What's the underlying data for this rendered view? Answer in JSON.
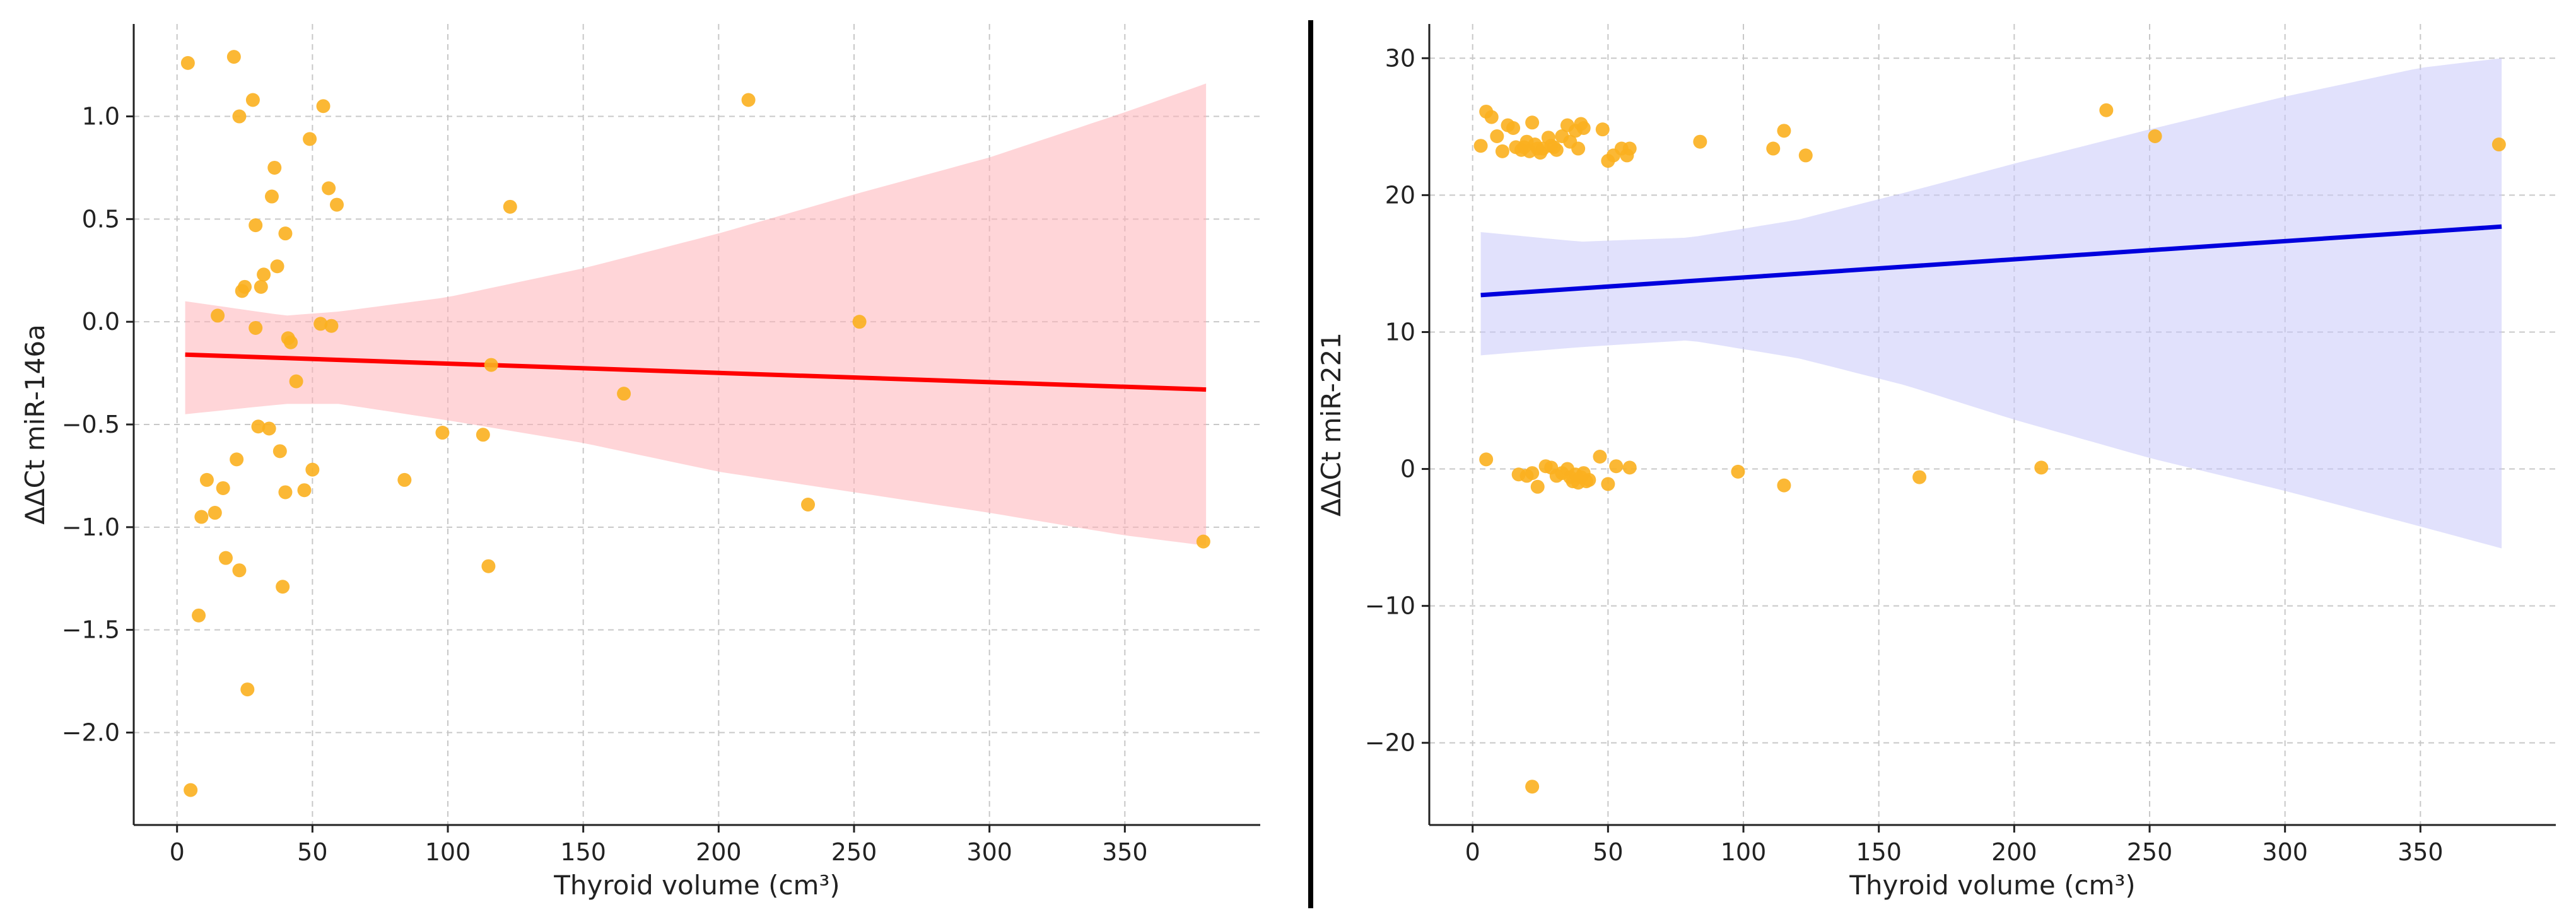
{
  "figure": {
    "colors": {
      "points": "#fbb01f",
      "grid": "#c8c8c8",
      "axis": "#222222",
      "divider": "#000000"
    }
  },
  "chart_data": [
    {
      "type": "scatter",
      "title": "",
      "xlabel": "Thyroid volume (cm³)",
      "ylabel": "ΔΔCt miR-146a",
      "xlim": [
        -16,
        400
      ],
      "ylim": [
        -2.45,
        1.45
      ],
      "xticks": [
        0,
        50,
        100,
        150,
        200,
        250,
        300,
        350
      ],
      "yticks": [
        -2.0,
        -1.5,
        -1.0,
        -0.5,
        0.0,
        0.5,
        1.0
      ],
      "xtick_labels": [
        "0",
        "50",
        "100",
        "150",
        "200",
        "250",
        "300",
        "350"
      ],
      "ytick_labels": [
        "−2.0",
        "−1.5",
        "−1.0",
        "−0.5",
        "0.0",
        "0.5",
        "1.0"
      ],
      "grid": true,
      "colors": {
        "line": "#ff0000",
        "band": "#ffb3b8"
      },
      "regression": {
        "x": [
          3,
          380
        ],
        "y": [
          -0.16,
          -0.33
        ]
      },
      "confidence_band": {
        "x": [
          3,
          40,
          60,
          100,
          150,
          200,
          250,
          300,
          350,
          380
        ],
        "upper": [
          0.1,
          0.03,
          0.05,
          0.12,
          0.26,
          0.43,
          0.62,
          0.8,
          1.02,
          1.16
        ],
        "lower": [
          -0.45,
          -0.4,
          -0.4,
          -0.48,
          -0.59,
          -0.73,
          -0.83,
          -0.93,
          -1.04,
          -1.09
        ]
      },
      "points": {
        "x": [
          4,
          5,
          8,
          9,
          11,
          14,
          15,
          17,
          18,
          21,
          22,
          23,
          23,
          24,
          25,
          26,
          28,
          29,
          29,
          30,
          31,
          32,
          34,
          35,
          36,
          37,
          38,
          39,
          40,
          40,
          41,
          42,
          44,
          47,
          49,
          50,
          53,
          54,
          56,
          57,
          59,
          84,
          98,
          113,
          115,
          116,
          123,
          165,
          211,
          233,
          252,
          379
        ],
        "y": [
          1.26,
          -2.28,
          -1.43,
          -0.95,
          -0.77,
          -0.93,
          0.03,
          -0.81,
          -1.15,
          1.29,
          -0.67,
          -1.21,
          1.0,
          0.15,
          0.17,
          -1.79,
          1.08,
          -0.03,
          0.47,
          -0.51,
          0.17,
          0.23,
          -0.52,
          0.61,
          0.75,
          0.27,
          -0.63,
          -1.29,
          0.43,
          -0.83,
          -0.08,
          -0.1,
          -0.29,
          -0.82,
          0.89,
          -0.72,
          -0.01,
          1.05,
          0.65,
          -0.02,
          0.57,
          -0.77,
          -0.54,
          -0.55,
          -1.19,
          -0.21,
          0.56,
          -0.35,
          1.08,
          -0.89,
          0.0,
          -1.07
        ]
      }
    },
    {
      "type": "scatter",
      "title": "",
      "xlabel": "Thyroid volume (cm³)",
      "ylabel": "ΔΔCt miR-221",
      "xlim": [
        -16,
        400
      ],
      "ylim": [
        -26,
        32.5
      ],
      "xticks": [
        0,
        50,
        100,
        150,
        200,
        250,
        300,
        350
      ],
      "yticks": [
        -20,
        -10,
        0,
        10,
        20,
        30
      ],
      "xtick_labels": [
        "0",
        "50",
        "100",
        "150",
        "200",
        "250",
        "300",
        "350"
      ],
      "ytick_labels": [
        "−20",
        "−10",
        "0",
        "10",
        "20",
        "30"
      ],
      "grid": true,
      "colors": {
        "line": "#0000dd",
        "band": "#c8c8fa"
      },
      "regression": {
        "x": [
          3,
          380
        ],
        "y": [
          12.7,
          17.7
        ]
      },
      "confidence_band": {
        "x": [
          3,
          40,
          80,
          120,
          160,
          200,
          250,
          300,
          350,
          380
        ],
        "upper": [
          17.3,
          16.6,
          16.9,
          18.2,
          20.2,
          22.3,
          24.8,
          27.2,
          29.3,
          30.0
        ],
        "lower": [
          8.3,
          8.9,
          9.4,
          8.1,
          6.1,
          3.6,
          0.8,
          -1.6,
          -4.2,
          -5.8
        ],
        "band_start": 3,
        "band_end": 380
      },
      "points": {
        "x": [
          3,
          5,
          7,
          9,
          11,
          13,
          15,
          16,
          18,
          19,
          20,
          21,
          22,
          23,
          24,
          25,
          26,
          28,
          29,
          30,
          31,
          33,
          35,
          36,
          38,
          39,
          40,
          41,
          48,
          50,
          52,
          55,
          57,
          58,
          84,
          111,
          115,
          123,
          234,
          252,
          379,
          5,
          17,
          20,
          22,
          24,
          27,
          29,
          31,
          33,
          35,
          36,
          37,
          38,
          39,
          40,
          41,
          42,
          43,
          47,
          50,
          53,
          58,
          98,
          115,
          165,
          210,
          22
        ],
        "y": [
          23.6,
          26.1,
          25.7,
          24.3,
          23.2,
          25.1,
          24.9,
          23.5,
          23.3,
          23.5,
          23.9,
          23.2,
          25.3,
          23.7,
          23.4,
          23.1,
          23.4,
          24.2,
          23.6,
          23.5,
          23.3,
          24.3,
          25.1,
          23.9,
          24.7,
          23.4,
          25.2,
          24.9,
          24.8,
          22.5,
          22.9,
          23.4,
          22.9,
          23.4,
          23.9,
          23.4,
          24.7,
          22.9,
          26.2,
          24.3,
          23.7,
          0.7,
          -0.4,
          -0.5,
          -0.3,
          -1.3,
          0.2,
          0.1,
          -0.5,
          -0.3,
          0.0,
          -0.6,
          -0.9,
          -0.4,
          -1.0,
          -0.6,
          -0.3,
          -0.9,
          -0.8,
          0.9,
          -1.1,
          0.2,
          0.1,
          -0.2,
          -1.2,
          -0.6,
          0.1,
          -23.2
        ]
      }
    }
  ]
}
